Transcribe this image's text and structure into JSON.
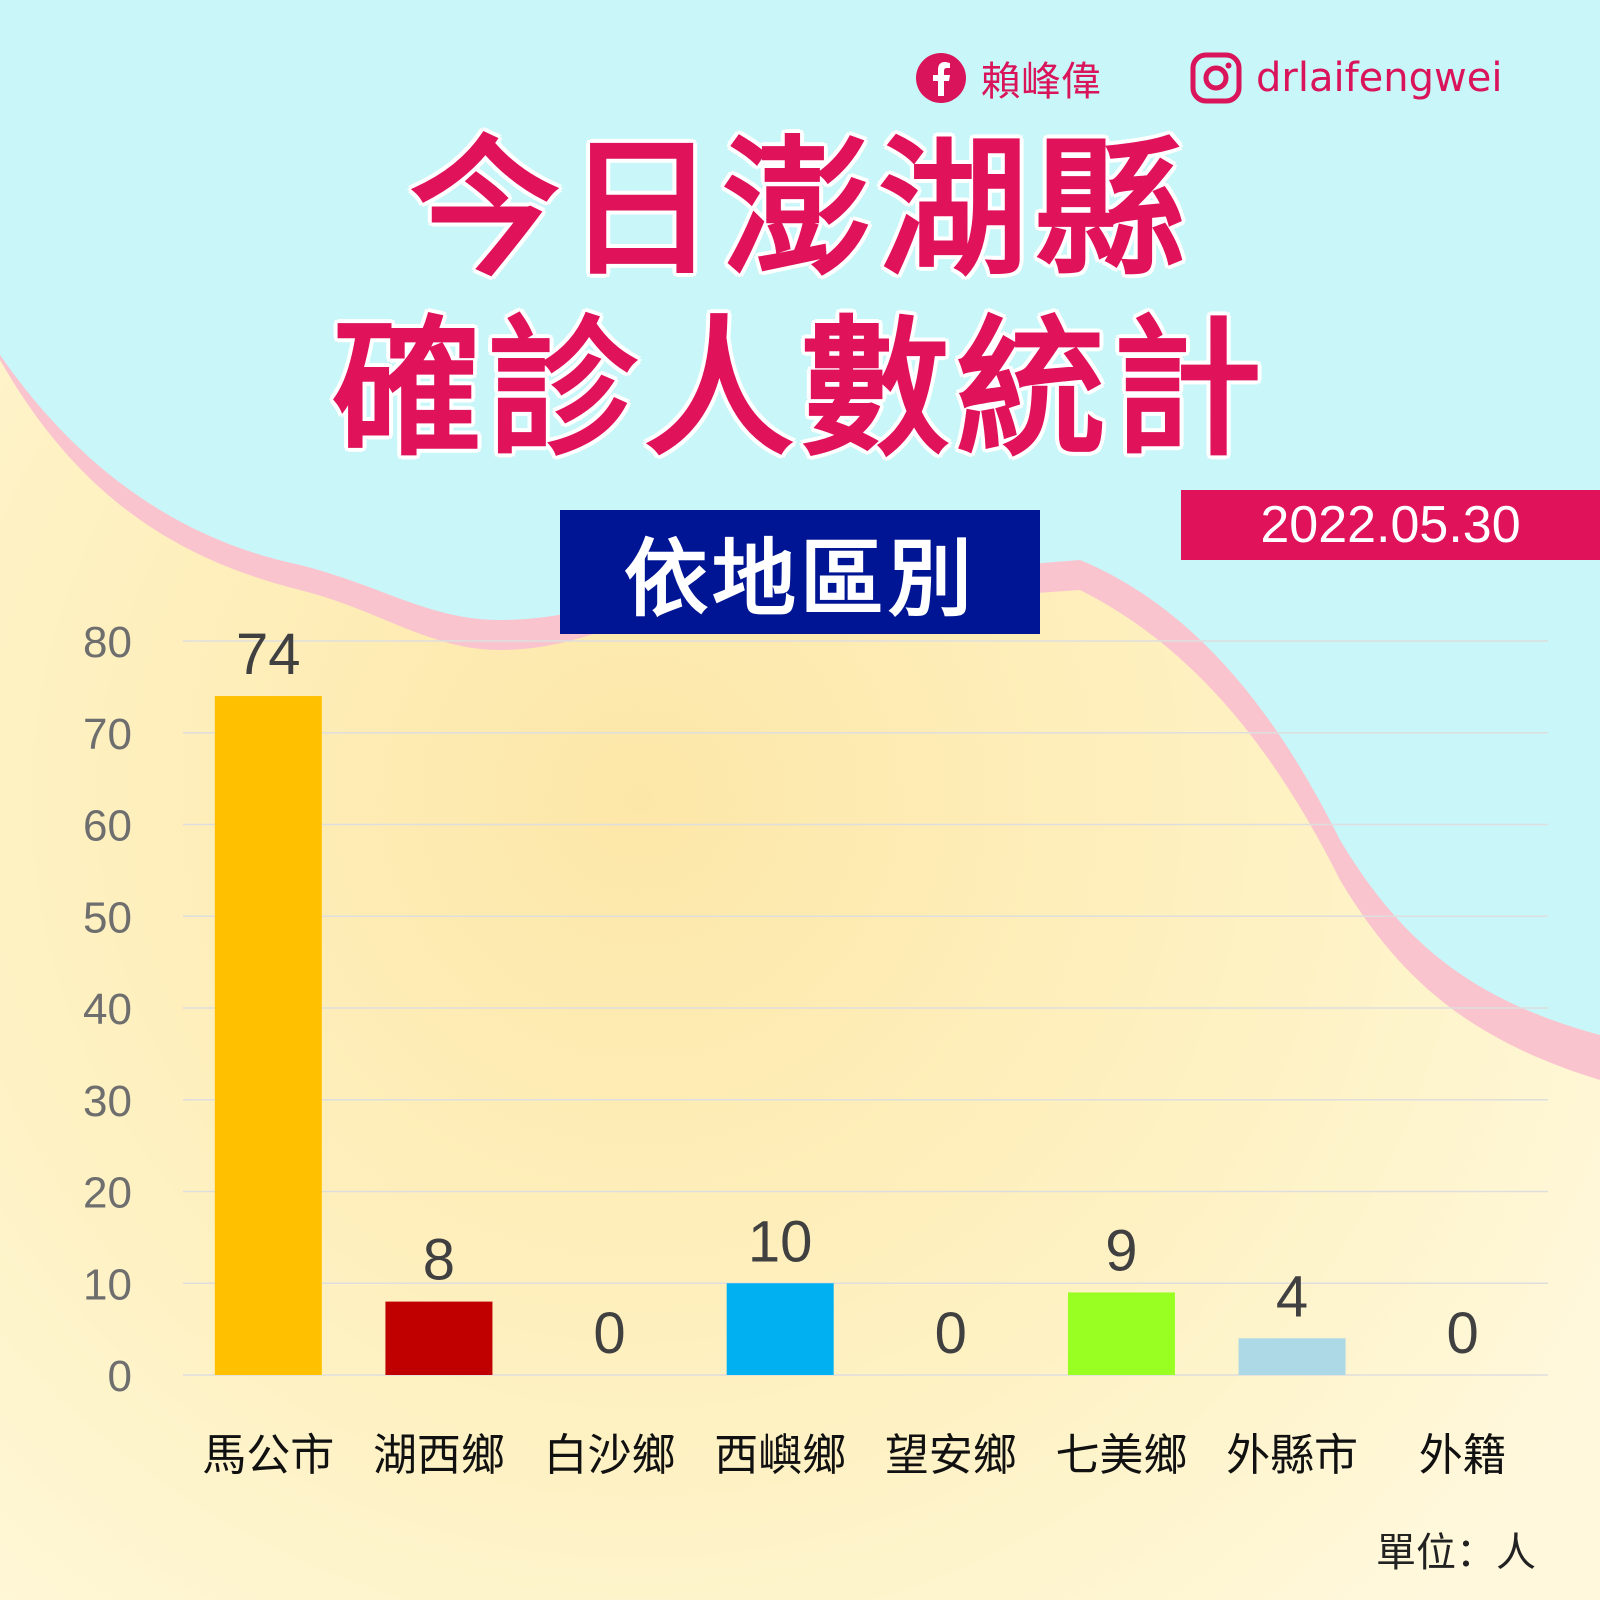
{
  "header": {
    "facebook_name": "賴峰偉",
    "instagram_handle": "drlaifengwei",
    "title_line1": "今日澎湖縣",
    "title_line2": "確診人數統計",
    "subtitle": "依地區別",
    "date": "2022.05.30",
    "unit_note": "單位：人"
  },
  "colors": {
    "title": "#e0125a",
    "subtitle_bg": "#001593",
    "date_bg": "#e0125a",
    "sky": "#c9f6f8",
    "wave": "#f9c4ce"
  },
  "chart_data": {
    "type": "bar",
    "categories": [
      "馬公市",
      "湖西鄉",
      "白沙鄉",
      "西嶼鄉",
      "望安鄉",
      "七美鄉",
      "外縣市",
      "外籍"
    ],
    "values": [
      74,
      8,
      0,
      10,
      0,
      9,
      4,
      0
    ],
    "bar_colors": [
      "#ffc000",
      "#c00000",
      "#7f7f7f",
      "#00b0f0",
      "#7f7f7f",
      "#99ff22",
      "#add8e6",
      "#7f7f7f"
    ],
    "ylim": [
      0,
      80
    ],
    "yticks": [
      "0",
      "10",
      "20",
      "30",
      "40",
      "50",
      "60",
      "70",
      "80"
    ],
    "grid": true,
    "legend": "none",
    "data_labels": true
  }
}
